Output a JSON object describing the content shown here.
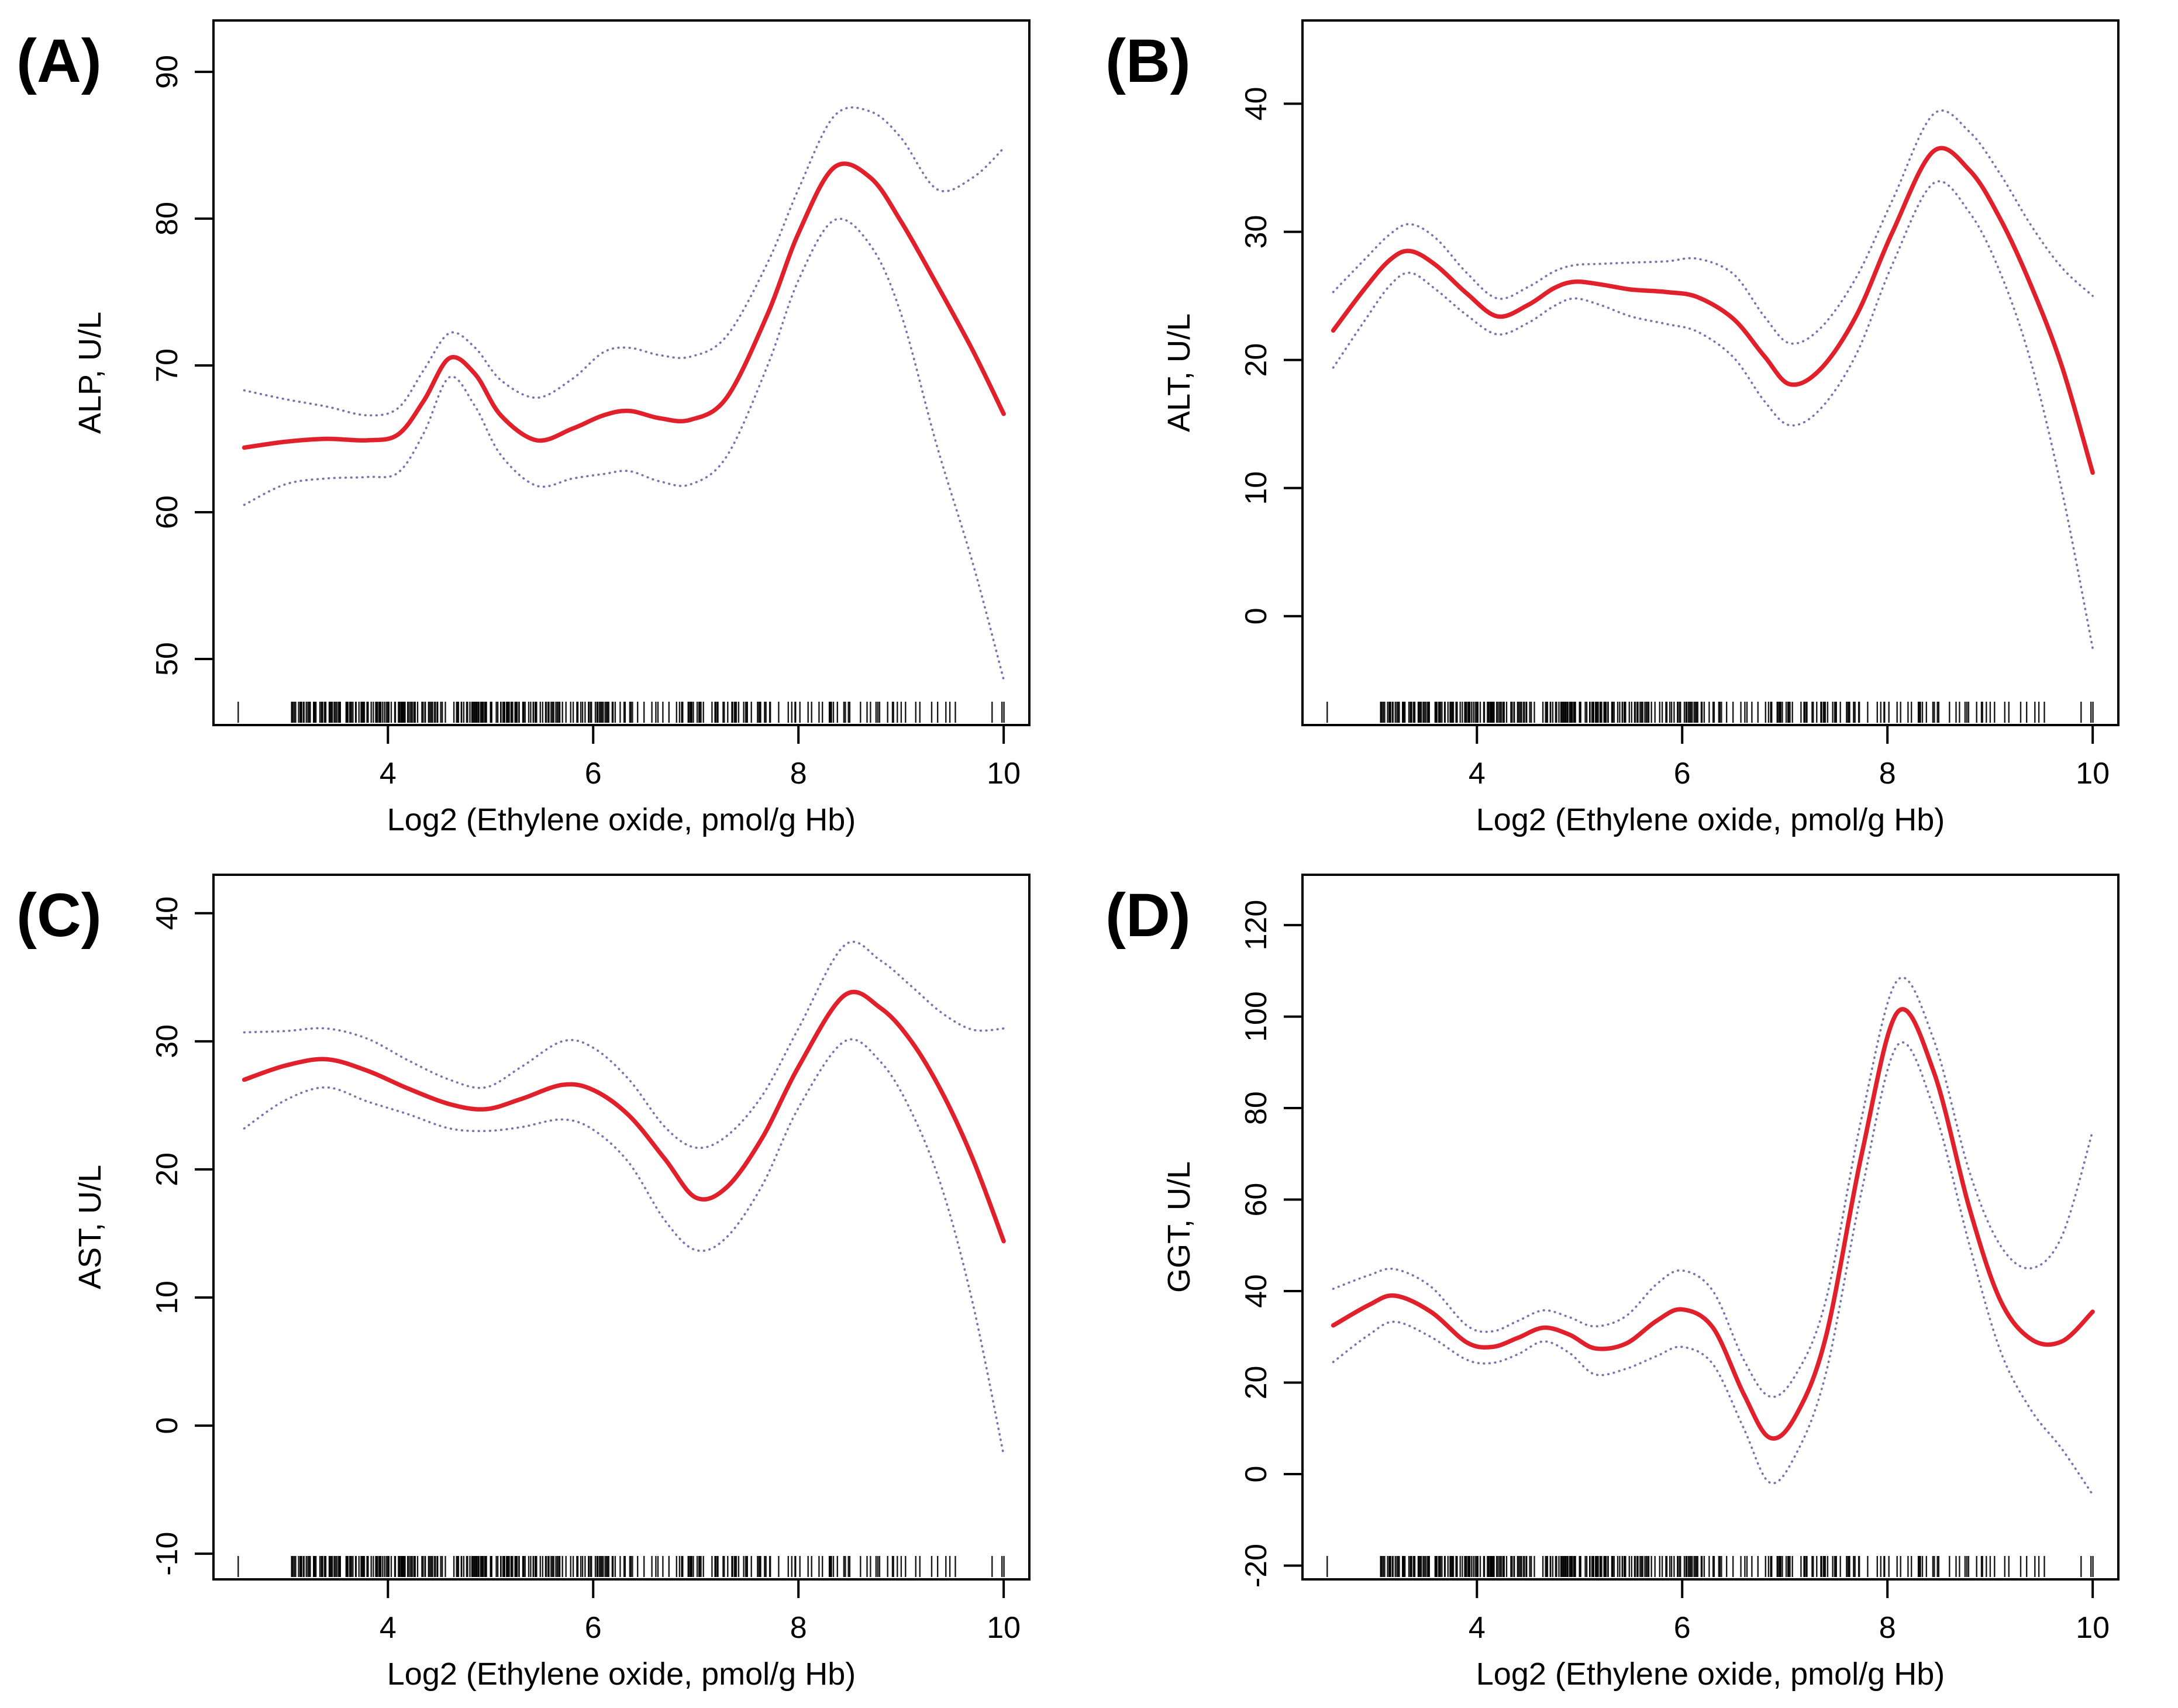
{
  "figure": {
    "type": "scatterplot-smoother-grid",
    "styles": {
      "fit_color": "#e0202a",
      "ci_color": "#7777b0",
      "axis_color": "#000000",
      "rug_color": "#000000",
      "background": "#ffffff"
    },
    "rug": {
      "seed": 13577,
      "bands": [
        {
          "from": 2.53,
          "to": 2.56,
          "count": 1
        },
        {
          "from": 3.05,
          "to": 5.3,
          "count": 180
        },
        {
          "from": 5.3,
          "to": 6.3,
          "count": 55
        },
        {
          "from": 6.3,
          "to": 7.3,
          "count": 38
        },
        {
          "from": 7.3,
          "to": 8.3,
          "count": 32
        },
        {
          "from": 8.3,
          "to": 9.0,
          "count": 20
        },
        {
          "from": 9.0,
          "to": 9.55,
          "count": 9
        },
        {
          "from": 9.85,
          "to": 10.02,
          "count": 3
        }
      ]
    }
  },
  "chart_data": [
    {
      "type": "line",
      "panel": "A",
      "label": "(A)",
      "xlabel": "Log2 (Ethylene oxide, pmol/g Hb)",
      "ylabel": "ALP, U/L",
      "xlim": [
        2.3,
        10.25
      ],
      "ylim": [
        45.5,
        93.5
      ],
      "xticks": [
        4,
        6,
        8,
        10
      ],
      "yticks": [
        50,
        60,
        70,
        80,
        90
      ],
      "grid": false,
      "legend": "none",
      "x": [
        2.6,
        3.0,
        3.4,
        3.8,
        4.1,
        4.35,
        4.6,
        4.85,
        5.1,
        5.45,
        5.8,
        6.1,
        6.35,
        6.65,
        6.95,
        7.3,
        7.7,
        8.0,
        8.35,
        8.7,
        9.0,
        9.35,
        9.7,
        10.0
      ],
      "series": [
        {
          "name": "fitted",
          "values": [
            64.4,
            64.8,
            65.0,
            64.9,
            65.3,
            67.6,
            70.5,
            69.4,
            66.6,
            64.9,
            65.7,
            66.6,
            66.9,
            66.4,
            66.3,
            67.8,
            73.5,
            79.0,
            83.5,
            82.8,
            79.8,
            75.5,
            71.0,
            66.7
          ]
        },
        {
          "name": "upper-95ci",
          "values": [
            68.3,
            67.7,
            67.2,
            66.6,
            67.1,
            69.7,
            72.2,
            71.2,
            69.0,
            67.8,
            69.1,
            70.9,
            71.2,
            70.7,
            70.6,
            72.0,
            77.0,
            82.0,
            87.0,
            87.3,
            85.5,
            82.0,
            82.8,
            84.8
          ]
        },
        {
          "name": "lower-95ci",
          "values": [
            60.5,
            61.9,
            62.3,
            62.4,
            62.7,
            65.4,
            69.2,
            67.2,
            63.9,
            61.8,
            62.3,
            62.6,
            62.8,
            62.1,
            61.9,
            63.8,
            70.0,
            75.8,
            79.9,
            78.2,
            73.5,
            64.5,
            56.5,
            48.6
          ]
        }
      ]
    },
    {
      "type": "line",
      "panel": "B",
      "label": "(B)",
      "xlabel": "Log2 (Ethylene oxide, pmol/g Hb)",
      "ylabel": "ALT, U/L",
      "xlim": [
        2.3,
        10.25
      ],
      "ylim": [
        -8.5,
        46.5
      ],
      "xticks": [
        4,
        6,
        8,
        10
      ],
      "yticks": [
        0,
        10,
        20,
        30,
        40
      ],
      "grid": false,
      "legend": "none",
      "x": [
        2.6,
        2.9,
        3.15,
        3.35,
        3.6,
        3.9,
        4.2,
        4.5,
        4.75,
        4.95,
        5.2,
        5.5,
        5.85,
        6.15,
        6.5,
        6.8,
        7.05,
        7.35,
        7.7,
        8.05,
        8.45,
        8.8,
        9.1,
        9.4,
        9.7,
        10.0
      ],
      "series": [
        {
          "name": "fitted",
          "values": [
            22.3,
            25.5,
            27.8,
            28.5,
            27.4,
            25.2,
            23.4,
            24.3,
            25.6,
            26.1,
            25.9,
            25.5,
            25.3,
            24.9,
            23.2,
            20.3,
            18.1,
            19.3,
            23.5,
            30.0,
            36.3,
            34.8,
            31.0,
            25.8,
            19.5,
            11.2
          ]
        },
        {
          "name": "upper-95ci",
          "values": [
            25.3,
            27.8,
            29.8,
            30.6,
            29.5,
            26.8,
            24.8,
            25.7,
            26.9,
            27.4,
            27.5,
            27.6,
            27.7,
            27.9,
            26.7,
            23.4,
            21.3,
            22.5,
            26.5,
            32.5,
            39.2,
            37.8,
            34.5,
            30.5,
            27.2,
            25.0
          ]
        },
        {
          "name": "lower-95ci",
          "values": [
            19.4,
            23.0,
            25.8,
            26.8,
            25.5,
            23.5,
            22.0,
            22.9,
            24.2,
            24.8,
            24.3,
            23.4,
            22.8,
            22.2,
            20.2,
            16.8,
            14.9,
            16.2,
            20.5,
            27.5,
            33.8,
            31.5,
            26.8,
            19.8,
            9.8,
            -2.5
          ]
        }
      ]
    },
    {
      "type": "line",
      "panel": "C",
      "label": "(C)",
      "xlabel": "Log2 (Ethylene oxide, pmol/g Hb)",
      "ylabel": "AST, U/L",
      "xlim": [
        2.3,
        10.25
      ],
      "ylim": [
        -12,
        43
      ],
      "xticks": [
        4,
        6,
        8,
        10
      ],
      "yticks": [
        -10,
        0,
        10,
        20,
        30,
        40
      ],
      "grid": false,
      "legend": "none",
      "x": [
        2.6,
        3.0,
        3.4,
        3.8,
        4.2,
        4.6,
        4.95,
        5.3,
        5.7,
        6.0,
        6.35,
        6.7,
        7.0,
        7.3,
        7.65,
        8.0,
        8.45,
        8.8,
        9.1,
        9.4,
        9.7,
        10.0
      ],
      "series": [
        {
          "name": "fitted",
          "values": [
            27.0,
            28.1,
            28.6,
            27.7,
            26.3,
            25.1,
            24.7,
            25.5,
            26.6,
            26.2,
            24.2,
            20.8,
            17.8,
            18.6,
            22.5,
            28.0,
            33.6,
            32.6,
            30.0,
            26.0,
            20.8,
            14.4
          ]
        },
        {
          "name": "upper-95ci",
          "values": [
            30.7,
            30.8,
            31.0,
            30.2,
            28.5,
            27.0,
            26.4,
            28.0,
            30.0,
            29.5,
            27.0,
            23.3,
            21.7,
            22.6,
            25.8,
            31.0,
            37.5,
            36.3,
            34.3,
            32.2,
            30.9,
            31.0
          ]
        },
        {
          "name": "lower-95ci",
          "values": [
            23.2,
            25.4,
            26.4,
            25.3,
            24.3,
            23.2,
            23.0,
            23.3,
            23.9,
            23.1,
            20.5,
            16.0,
            13.7,
            14.7,
            18.8,
            24.8,
            30.0,
            28.4,
            24.5,
            18.5,
            9.5,
            -2.3
          ]
        }
      ]
    },
    {
      "type": "line",
      "panel": "D",
      "label": "(D)",
      "xlabel": "Log2 (Ethylene oxide, pmol/g Hb)",
      "ylabel": "GGT, U/L",
      "xlim": [
        2.3,
        10.25
      ],
      "ylim": [
        -23,
        131
      ],
      "xticks": [
        4,
        6,
        8,
        10
      ],
      "yticks": [
        -20,
        0,
        20,
        40,
        60,
        80,
        100,
        120
      ],
      "grid": false,
      "legend": "none",
      "x": [
        2.6,
        2.95,
        3.2,
        3.55,
        3.9,
        4.15,
        4.4,
        4.65,
        4.9,
        5.15,
        5.45,
        5.75,
        6.0,
        6.3,
        6.6,
        6.85,
        7.1,
        7.4,
        7.75,
        8.1,
        8.45,
        8.8,
        9.1,
        9.4,
        9.7,
        10.0
      ],
      "series": [
        {
          "name": "fitted",
          "values": [
            32.5,
            37.0,
            39.0,
            35.5,
            28.8,
            27.8,
            29.8,
            32.0,
            30.5,
            27.5,
            28.5,
            33.5,
            36.0,
            32.0,
            17.5,
            8.0,
            12.5,
            30.0,
            70.0,
            101.0,
            88.0,
            58.0,
            38.0,
            29.5,
            29.0,
            35.5
          ]
        },
        {
          "name": "upper-95ci",
          "values": [
            40.5,
            43.5,
            44.8,
            41.0,
            32.5,
            31.2,
            33.5,
            35.8,
            34.3,
            32.3,
            34.5,
            41.5,
            44.5,
            40.0,
            25.0,
            17.0,
            21.5,
            38.0,
            78.0,
            108.0,
            95.0,
            66.0,
            50.0,
            45.0,
            52.0,
            75.0
          ]
        },
        {
          "name": "lower-95ci",
          "values": [
            24.5,
            30.5,
            33.3,
            30.0,
            25.0,
            24.3,
            26.2,
            29.0,
            26.5,
            21.8,
            23.0,
            25.8,
            27.8,
            24.0,
            10.0,
            -1.8,
            4.0,
            22.0,
            62.0,
            93.8,
            80.0,
            50.0,
            27.0,
            14.0,
            5.5,
            -4.5
          ]
        }
      ]
    }
  ]
}
